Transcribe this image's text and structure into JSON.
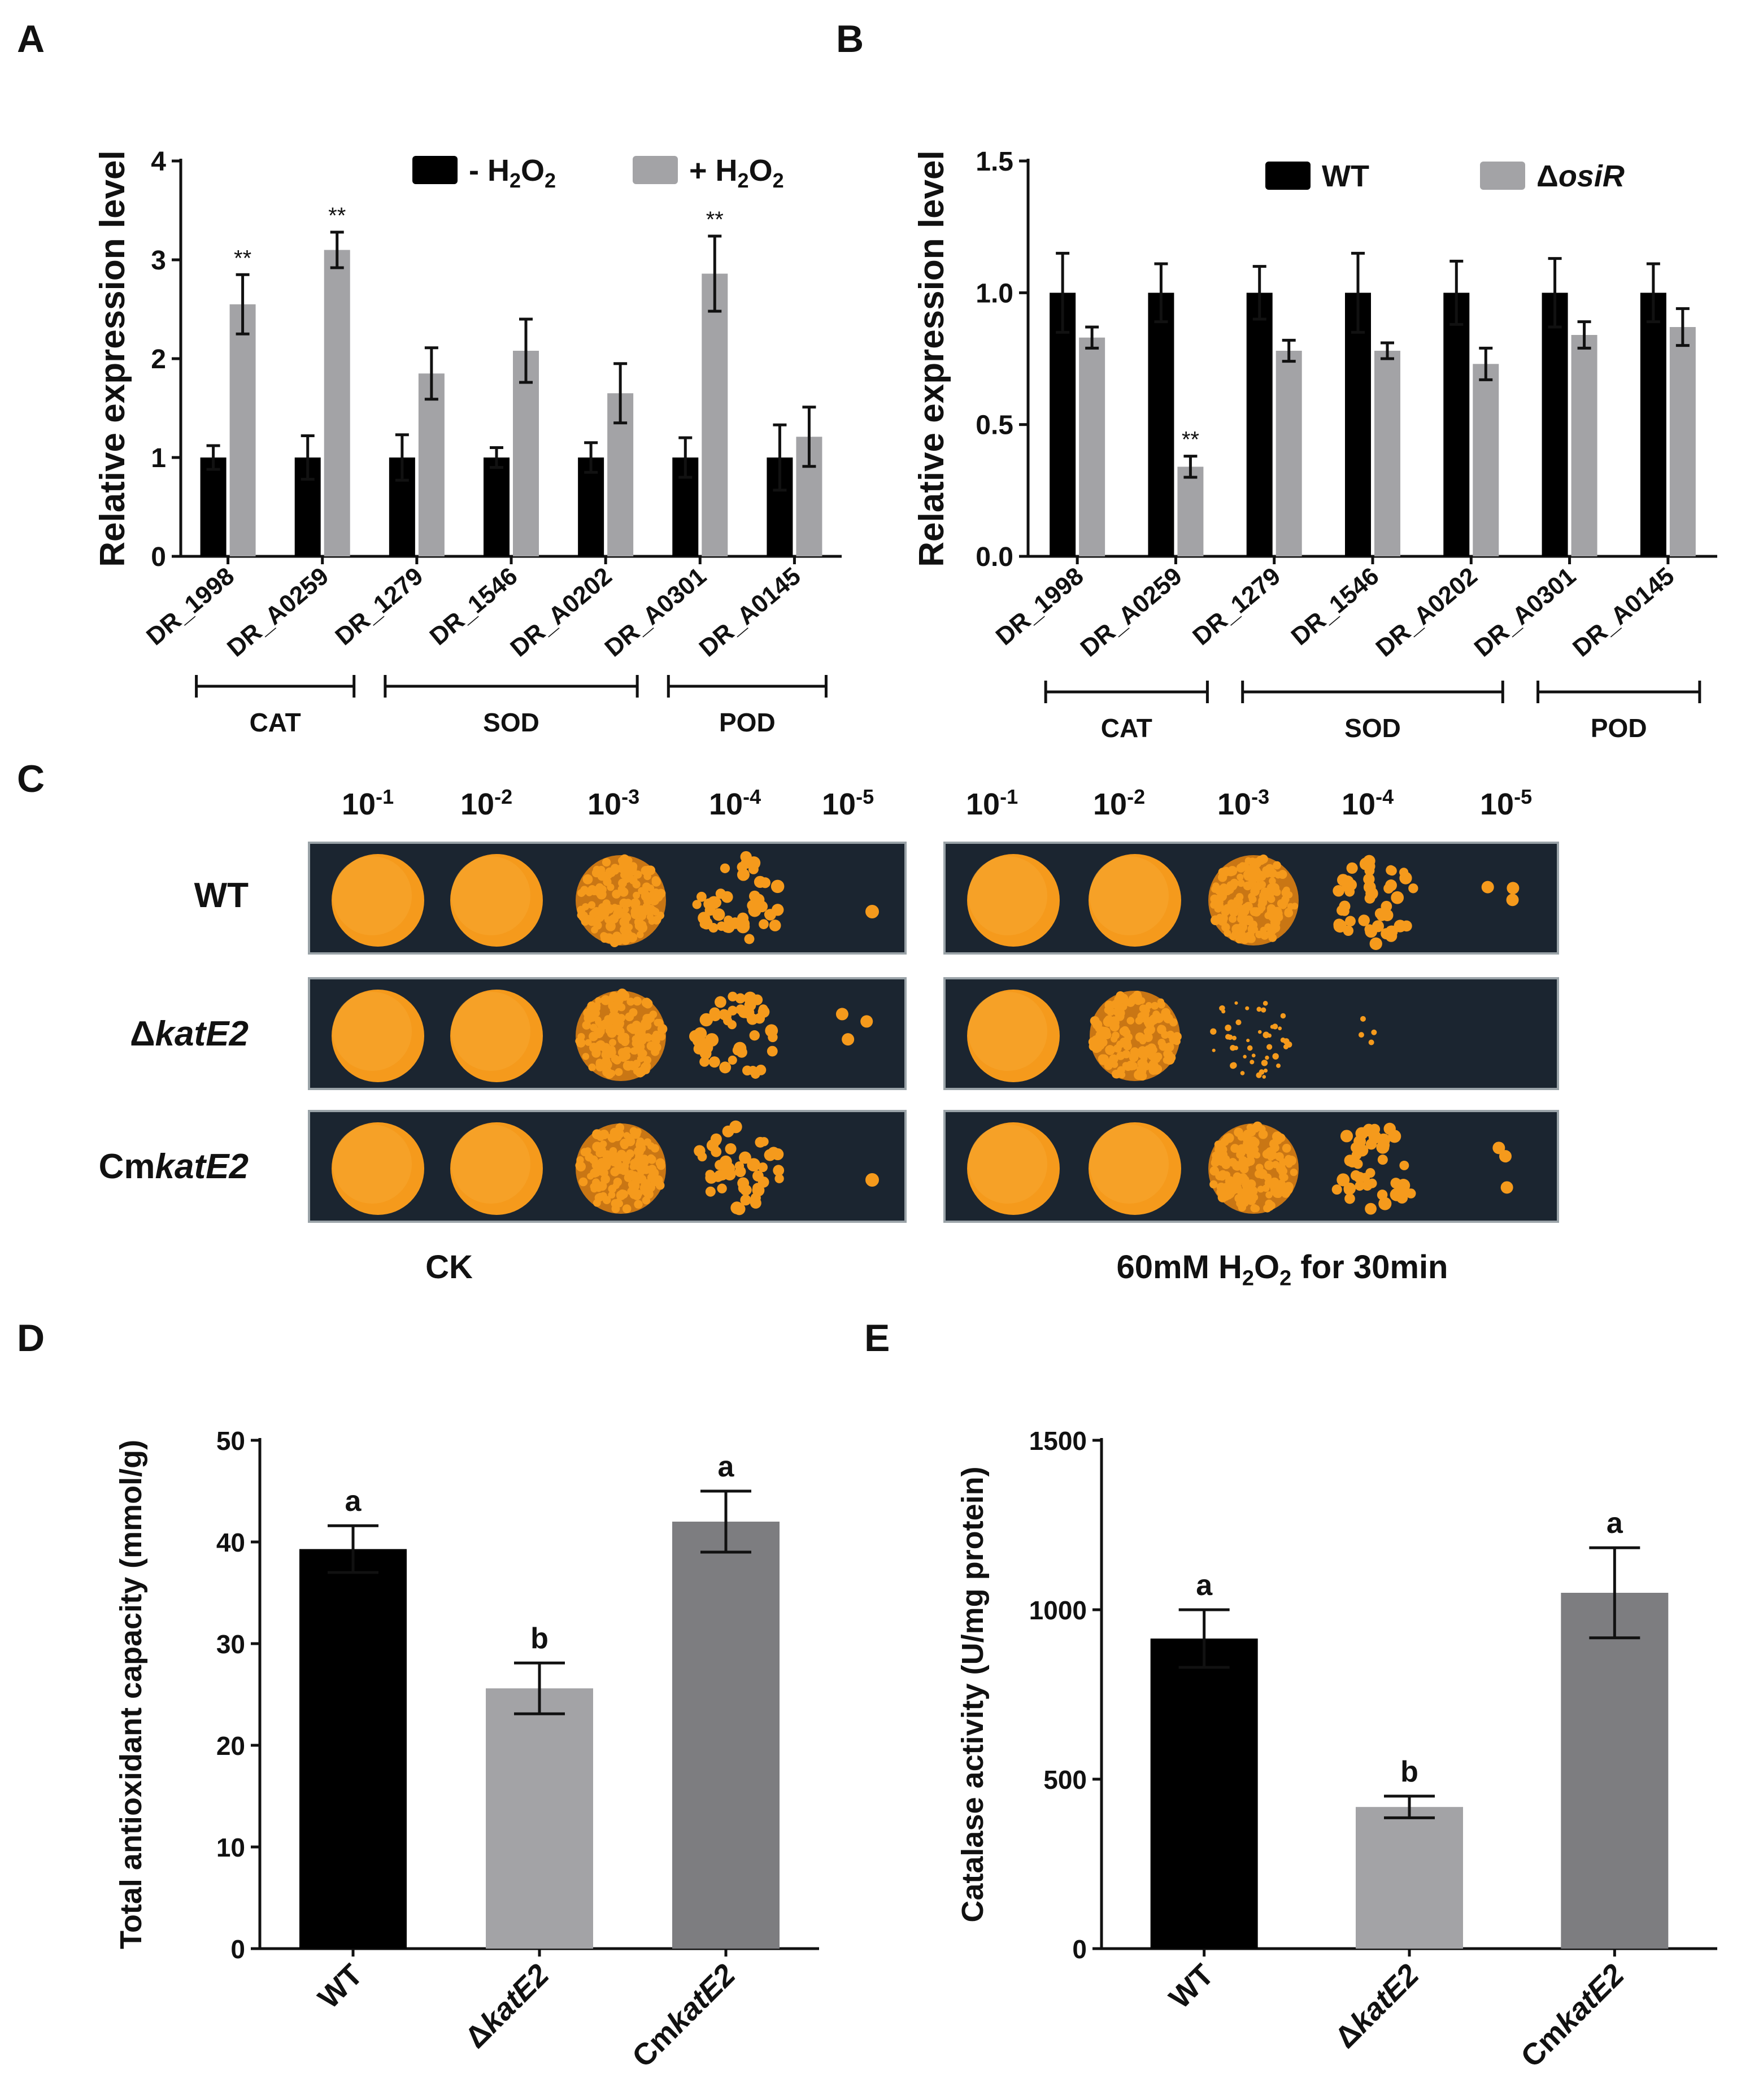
{
  "panels": {
    "A": "A",
    "B": "B",
    "C": "C",
    "D": "D",
    "E": "E"
  },
  "colors": {
    "black_bar": "#000000",
    "gray_bar": "#a3a3a6",
    "light_gray_bar": "#a3a3a6",
    "dark_gray_bar": "#7d7d80",
    "colony": "#f59a1c",
    "plate_bg": "#1b2530"
  },
  "chart_data": [
    {
      "id": "A",
      "type": "bar",
      "ylabel": "Relative expression level",
      "ylim": [
        0,
        4
      ],
      "yticks": [
        "0",
        "1",
        "2",
        "3",
        "4"
      ],
      "categories": [
        "DR_1998",
        "DR_A0259",
        "DR_1279",
        "DR_1546",
        "DR_A0202",
        "DR_A0301",
        "DR_A0145"
      ],
      "legend_position": "top",
      "series": [
        {
          "name_parts": [
            "- H",
            "2",
            "O",
            "2"
          ],
          "values": [
            1.0,
            1.0,
            1.0,
            1.0,
            1.0,
            1.0,
            1.0
          ],
          "errors": [
            0.12,
            0.22,
            0.23,
            0.1,
            0.15,
            0.2,
            0.33
          ]
        },
        {
          "name_parts": [
            "+ H",
            "2",
            "O",
            "2"
          ],
          "values": [
            2.55,
            3.1,
            1.85,
            2.08,
            1.65,
            2.86,
            1.21
          ],
          "errors": [
            0.3,
            0.18,
            0.26,
            0.32,
            0.3,
            0.38,
            0.3
          ]
        }
      ],
      "annotations": [
        {
          "category": 0,
          "series": 1,
          "text": "**"
        },
        {
          "category": 1,
          "series": 1,
          "text": "**"
        },
        {
          "category": 5,
          "series": 1,
          "text": "**"
        }
      ],
      "groups": [
        {
          "label": "CAT",
          "from": 0,
          "to": 1
        },
        {
          "label": "SOD",
          "from": 2,
          "to": 4
        },
        {
          "label": "POD",
          "from": 5,
          "to": 6
        }
      ]
    },
    {
      "id": "B",
      "type": "bar",
      "ylabel": "Relative expression level",
      "ylim": [
        0,
        1.5
      ],
      "yticks": [
        "0.0",
        "0.5",
        "1.0",
        "1.5"
      ],
      "categories": [
        "DR_1998",
        "DR_A0259",
        "DR_1279",
        "DR_1546",
        "DR_A0202",
        "DR_A0301",
        "DR_A0145"
      ],
      "legend_position": "top",
      "series": [
        {
          "name_parts": [
            "WT"
          ],
          "values": [
            1.0,
            1.0,
            1.0,
            1.0,
            1.0,
            1.0,
            1.0
          ],
          "errors": [
            0.15,
            0.11,
            0.1,
            0.15,
            0.12,
            0.13,
            0.11
          ]
        },
        {
          "name_parts": [
            "Δ",
            "osiR"
          ],
          "values": [
            0.83,
            0.34,
            0.78,
            0.78,
            0.73,
            0.84,
            0.87
          ],
          "errors": [
            0.04,
            0.04,
            0.04,
            0.03,
            0.06,
            0.05,
            0.07
          ]
        }
      ],
      "annotations": [
        {
          "category": 1,
          "series": 1,
          "text": "**"
        }
      ],
      "groups": [
        {
          "label": "CAT",
          "from": 0,
          "to": 1
        },
        {
          "label": "SOD",
          "from": 2,
          "to": 4
        },
        {
          "label": "POD",
          "from": 5,
          "to": 6
        }
      ]
    },
    {
      "id": "D",
      "type": "bar",
      "ylabel": "Total antioxidant capacity (mmol/g)",
      "ylim": [
        0,
        50
      ],
      "yticks": [
        "0",
        "10",
        "20",
        "30",
        "40",
        "50"
      ],
      "categories": [
        [
          "WT"
        ],
        [
          "Δ",
          "katE2"
        ],
        [
          "Cm",
          "katE2"
        ]
      ],
      "values": [
        39.3,
        25.6,
        42.0
      ],
      "errors": [
        2.3,
        2.5,
        3.0
      ],
      "letters": [
        "a",
        "b",
        "a"
      ]
    },
    {
      "id": "E",
      "type": "bar",
      "ylabel": "Catalase activity (U/mg protein)",
      "ylim": [
        0,
        1500
      ],
      "yticks": [
        "0",
        "500",
        "1000",
        "1500"
      ],
      "categories": [
        [
          "WT"
        ],
        [
          "Δ",
          "katE2"
        ],
        [
          "Cm",
          "katE2"
        ]
      ],
      "values": [
        915,
        418,
        1050
      ],
      "errors": [
        85,
        32,
        133
      ],
      "letters": [
        "a",
        "b",
        "a"
      ]
    }
  ],
  "plates": {
    "dilutions": [
      {
        "base": "10",
        "exp": "-1"
      },
      {
        "base": "10",
        "exp": "-2"
      },
      {
        "base": "10",
        "exp": "-3"
      },
      {
        "base": "10",
        "exp": "-4"
      },
      {
        "base": "10",
        "exp": "-5"
      }
    ],
    "strains": [
      {
        "pre": "WT",
        "ital": ""
      },
      {
        "pre": "Δ",
        "ital": "katE2"
      },
      {
        "pre": "Cm",
        "ital": "katE2"
      }
    ],
    "condition_ck": "CK",
    "condition_h2o2_parts": [
      "60mM H",
      "2",
      "O",
      "2",
      " for 30min"
    ],
    "growth_ck": [
      [
        "lawn",
        "lawn",
        "dense",
        "sparse",
        "dot"
      ],
      [
        "lawn",
        "lawn",
        "dense",
        "sparse",
        "few"
      ],
      [
        "lawn",
        "lawn",
        "dense",
        "sparse",
        "dot"
      ]
    ],
    "growth_h2o2": [
      [
        "lawn",
        "lawn",
        "dense",
        "sparse",
        "few"
      ],
      [
        "lawn",
        "dense",
        "tiny",
        "trace",
        "none"
      ],
      [
        "lawn",
        "lawn",
        "dense",
        "sparse",
        "few"
      ]
    ]
  }
}
